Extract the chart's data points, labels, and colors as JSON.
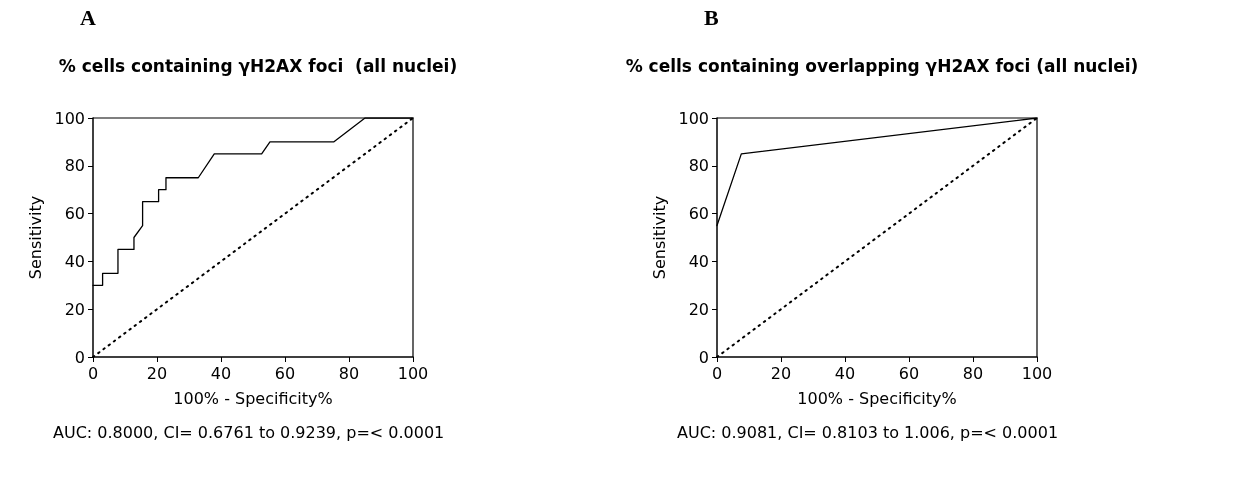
{
  "chart_data": [
    {
      "type": "line",
      "title": "% cells containing γH2AX foci  (all nuclei)",
      "xlabel": "100% - Specificity%",
      "ylabel": "Sensitivity",
      "annotations": [
        "A",
        "AUC: 0.8000, CI= 0.6761 to 0.9239, p=< 0.0001"
      ],
      "marker": "none",
      "xlim": [
        0,
        100
      ],
      "ylim": [
        0,
        100
      ],
      "xticks": [
        0,
        20,
        40,
        60,
        80,
        100
      ],
      "yticks": [
        0,
        20,
        40,
        60,
        80,
        100
      ],
      "series": [
        {
          "color": "#000000",
          "line_style": "solid",
          "x": [
            0,
            3,
            3,
            7.8,
            7.8,
            12.8,
            12.8,
            15.5,
            15.5,
            20.5,
            20.5,
            22.8,
            22.8,
            32.9,
            37.9,
            52.7,
            55.3,
            75.2,
            85,
            100
          ],
          "values": [
            30,
            30,
            35,
            35,
            45,
            45,
            50,
            55,
            65,
            65,
            70,
            70,
            75,
            75,
            85,
            85,
            90,
            90,
            100,
            100
          ]
        },
        {
          "color": "#000000",
          "line_style": "dotted",
          "x": [
            0,
            100
          ],
          "values": [
            0,
            100
          ]
        }
      ]
    },
    {
      "type": "line",
      "title": "% cells containing overlapping γH2AX foci (all nuclei)",
      "xlabel": "100% - Specificity%",
      "ylabel": "Sensitivity",
      "annotations": [
        "B",
        "AUC: 0.9081, CI= 0.8103 to 1.006, p=< 0.0001"
      ],
      "marker": "none",
      "xlim": [
        0,
        100
      ],
      "ylim": [
        0,
        100
      ],
      "xticks": [
        0,
        20,
        40,
        60,
        80,
        100
      ],
      "yticks": [
        0,
        20,
        40,
        60,
        80,
        100
      ],
      "series": [
        {
          "color": "#000000",
          "line_style": "solid",
          "x": [
            0,
            7.6,
            100
          ],
          "values": [
            55,
            85,
            100
          ]
        },
        {
          "color": "#000000",
          "line_style": "dotted",
          "x": [
            0,
            100
          ],
          "values": [
            0,
            100
          ]
        }
      ]
    }
  ]
}
